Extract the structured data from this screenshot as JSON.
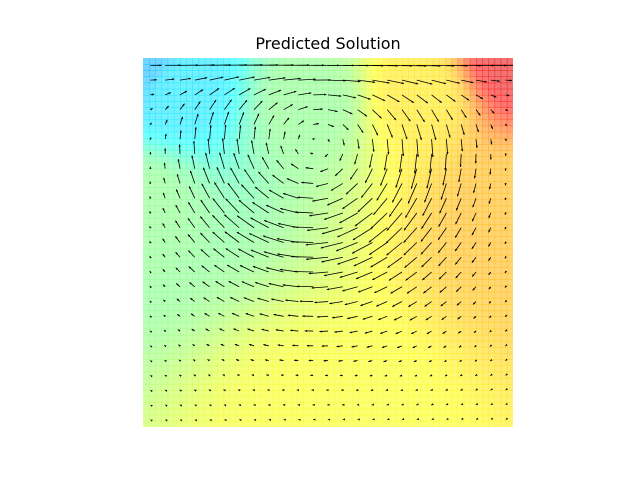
{
  "chart_data": {
    "type": "quiver",
    "title": "Predicted Solution",
    "xlabel": "",
    "ylabel": "",
    "xlim": [
      0,
      1
    ],
    "ylim": [
      0,
      1
    ],
    "axes_visible": false,
    "grid": false,
    "legend": "none",
    "field": {
      "kind": "lid-driven cavity flow",
      "lid_velocity_u": 1.0,
      "vortex_center": [
        0.47,
        0.78
      ],
      "arrows_per_side": 25,
      "arrow_color": "#000000"
    },
    "background": {
      "colormap": "jet",
      "alpha": 0.55,
      "pressure_stops": [
        {
          "x": 0.0,
          "y": 1.0,
          "value": 0.3
        },
        {
          "x": 0.1,
          "y": 0.92,
          "value": 0.35
        },
        {
          "x": 0.45,
          "y": 0.88,
          "value": 0.5
        },
        {
          "x": 0.75,
          "y": 0.9,
          "value": 0.65
        },
        {
          "x": 1.0,
          "y": 1.0,
          "value": 0.9
        },
        {
          "x": 0.0,
          "y": 0.6,
          "value": 0.5
        },
        {
          "x": 1.0,
          "y": 0.6,
          "value": 0.7
        },
        {
          "x": 0.5,
          "y": 0.0,
          "value": 0.62
        }
      ]
    }
  }
}
